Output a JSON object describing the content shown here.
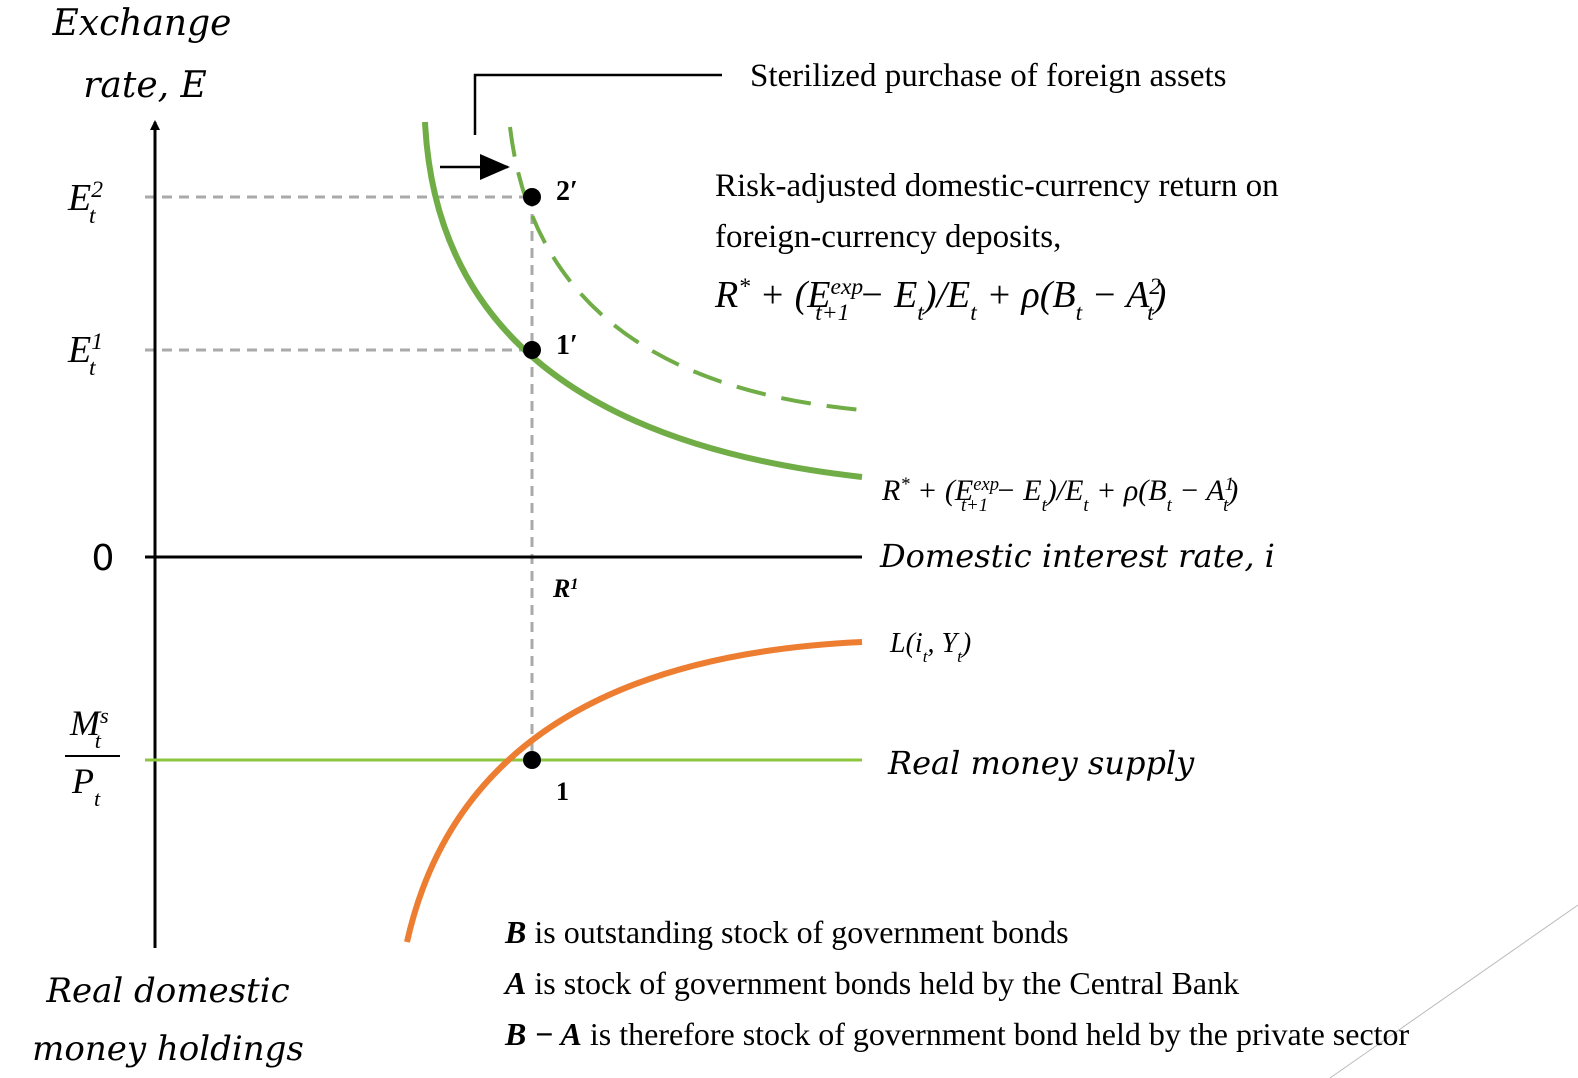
{
  "axes": {
    "y_label": [
      "Exchange",
      "rate, E"
    ],
    "x_label": "Domestic interest rate, i",
    "bottom_label": [
      "Real domestic",
      "money holdings"
    ],
    "origin": "0"
  },
  "y_ticks": [
    [
      "E",
      "2",
      "t"
    ],
    [
      "E",
      "1",
      "t"
    ]
  ],
  "money_tick": [
    "M",
    "s",
    "t",
    "P",
    "t"
  ],
  "points": [
    "2′",
    "1′",
    "1"
  ],
  "r_label": [
    "R",
    "1"
  ],
  "annotation": "Sterilized purchase of foreign assets",
  "description": [
    "Risk-adjusted domestic-currency return on",
    "foreign-currency deposits,"
  ],
  "formula_top": [
    "R",
    "*",
    " + (E",
    "exp",
    "t+1",
    " − E",
    "t",
    ")/E",
    "t",
    " + ρ(B",
    "t",
    " − A",
    "2",
    "t",
    ")"
  ],
  "formula_bottom": [
    "R",
    "*",
    " + (E",
    "exp",
    "t+1",
    " − E",
    "t",
    ")/E",
    "t",
    " + ρ(B",
    "t",
    " − A",
    "1",
    "t",
    ")"
  ],
  "liquidity": [
    "L(i",
    "t",
    ", Y",
    "t",
    ")"
  ],
  "money_supply": "Real money supply",
  "notes": [
    [
      "B",
      " is outstanding stock of government bonds"
    ],
    [
      "A",
      " is stock of government bonds held by the Central Bank"
    ],
    [
      "B − A",
      " is therefore stock of government bond held by the private sector"
    ]
  ]
}
